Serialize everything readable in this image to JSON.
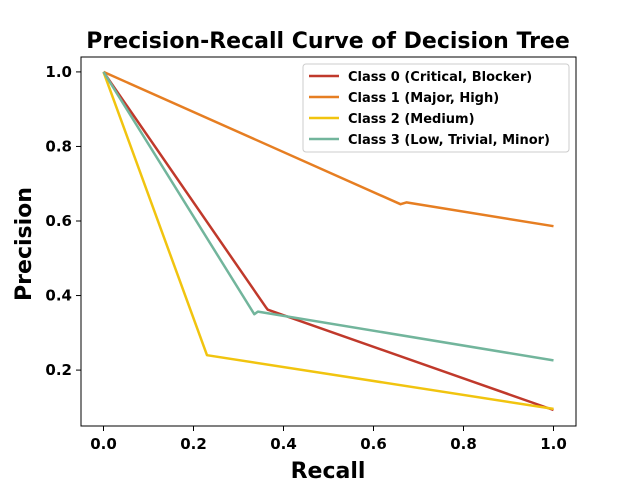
{
  "chart_data": {
    "type": "line",
    "title": "Precision-Recall Curve of Decision Tree",
    "xlabel": "Recall",
    "ylabel": "Precision",
    "xlim": [
      -0.05,
      1.05
    ],
    "ylim": [
      0.05,
      1.04
    ],
    "xticks": [
      0.0,
      0.2,
      0.4,
      0.6,
      0.8,
      1.0
    ],
    "yticks": [
      0.2,
      0.4,
      0.6,
      0.8,
      1.0
    ],
    "xtick_labels": [
      "0.0",
      "0.2",
      "0.4",
      "0.6",
      "0.8",
      "1.0"
    ],
    "ytick_labels": [
      "0.2",
      "0.4",
      "0.6",
      "0.8",
      "1.0"
    ],
    "grid": false,
    "legend_position": "top-right",
    "series": [
      {
        "name": "Class 0 (Critical, Blocker)",
        "color": "#c0392b",
        "x": [
          0.0,
          0.36,
          0.365,
          1.0
        ],
        "y": [
          1.0,
          0.37,
          0.362,
          0.093
        ]
      },
      {
        "name": "Class 1 (Major, High)",
        "color": "#e67e22",
        "x": [
          0.0,
          0.66,
          0.673,
          1.0
        ],
        "y": [
          1.0,
          0.645,
          0.65,
          0.586
        ]
      },
      {
        "name": "Class 2 (Medium)",
        "color": "#f1c40f",
        "x": [
          0.0,
          0.23,
          1.0
        ],
        "y": [
          1.0,
          0.24,
          0.096
        ]
      },
      {
        "name": "Class 3 (Low, Trivial, Minor)",
        "color": "#72b59c",
        "x": [
          0.0,
          0.335,
          0.343,
          1.0
        ],
        "y": [
          1.0,
          0.35,
          0.357,
          0.226
        ]
      }
    ]
  }
}
